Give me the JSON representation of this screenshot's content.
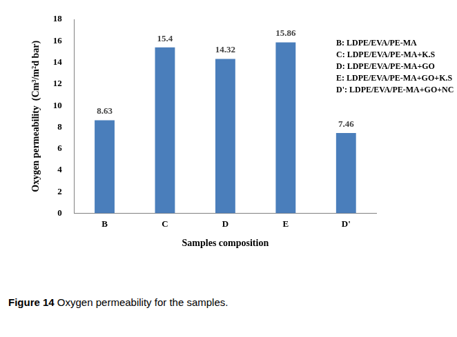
{
  "chart_data": {
    "type": "bar",
    "categories": [
      "B",
      "C",
      "D",
      "E",
      "D'"
    ],
    "values": [
      8.63,
      15.4,
      14.32,
      15.86,
      7.46
    ],
    "color": "#4a7ebb",
    "x_label": "Samples composition",
    "y_label": "Oxygen permeability  (Cm³/m²d bar)",
    "ylim": [
      0,
      18
    ],
    "yticks": [
      0,
      2,
      4,
      6,
      8,
      10,
      12,
      14,
      16,
      18
    ],
    "grid": false,
    "data_labels": true,
    "annotations": [
      "B: LDPE/EVA/PE-MA",
      "C: LDPE/EVA/PE-MA+K.S",
      "D: LDPE/EVA/PE-MA+GO",
      "E: LDPE/EVA/PE-MA+GO+K.S",
      "D': LDPE/EVA/PE-MA+GO+NC"
    ],
    "caption": {
      "label": "Figure 14",
      "text": "Oxygen permeability for the samples."
    }
  }
}
